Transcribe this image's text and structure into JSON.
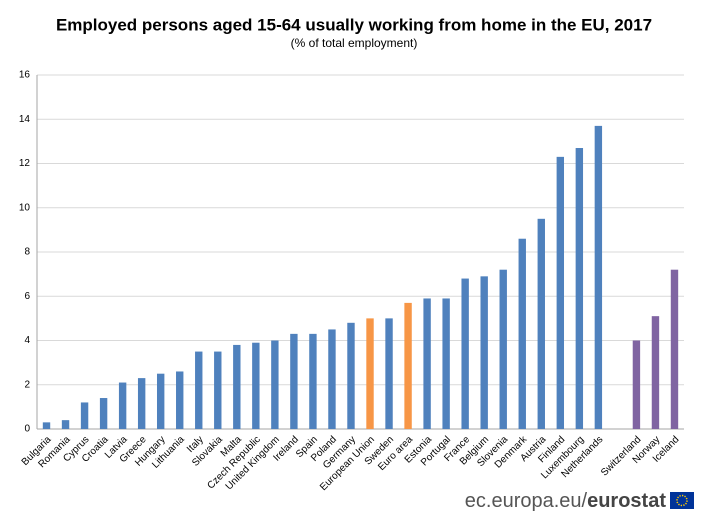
{
  "chart_data": {
    "type": "bar",
    "title": "Employed persons aged 15-64 usually working from home in the EU, 2017",
    "subtitle": "(% of total employment)",
    "categories": [
      "Bulgaria",
      "Romania",
      "Cyprus",
      "Croatia",
      "Latvia",
      "Greece",
      "Hungary",
      "Lithuania",
      "Italy",
      "Slovakia",
      "Malta",
      "Czech Republic",
      "United Kingdom",
      "Ireland",
      "Spain",
      "Poland",
      "Germany",
      "European Union",
      "Sweden",
      "Euro area",
      "Estonia",
      "Portugal",
      "France",
      "Belgium",
      "Slovenia",
      "Denmark",
      "Austria",
      "Finland",
      "Luxembourg",
      "Netherlands",
      null,
      "Switzerland",
      "Norway",
      "Iceland"
    ],
    "values": [
      0.3,
      0.4,
      1.2,
      1.4,
      2.1,
      2.3,
      2.5,
      2.6,
      3.5,
      3.5,
      3.8,
      3.9,
      4.0,
      4.3,
      4.3,
      4.5,
      4.8,
      5.0,
      5.0,
      5.7,
      5.9,
      5.9,
      6.8,
      6.9,
      7.2,
      8.6,
      9.5,
      12.3,
      12.7,
      13.7,
      null,
      4.0,
      5.1,
      7.2
    ],
    "colors": [
      "#4f81bd",
      "#4f81bd",
      "#4f81bd",
      "#4f81bd",
      "#4f81bd",
      "#4f81bd",
      "#4f81bd",
      "#4f81bd",
      "#4f81bd",
      "#4f81bd",
      "#4f81bd",
      "#4f81bd",
      "#4f81bd",
      "#4f81bd",
      "#4f81bd",
      "#4f81bd",
      "#4f81bd",
      "#f79646",
      "#4f81bd",
      "#f79646",
      "#4f81bd",
      "#4f81bd",
      "#4f81bd",
      "#4f81bd",
      "#4f81bd",
      "#4f81bd",
      "#4f81bd",
      "#4f81bd",
      "#4f81bd",
      "#4f81bd",
      null,
      "#8064a2",
      "#8064a2",
      "#8064a2"
    ],
    "ylim": [
      0,
      16
    ],
    "yticks": [
      0,
      2,
      4,
      6,
      8,
      10,
      12,
      14,
      16
    ],
    "grid": true,
    "source": {
      "prefix": "ec.europa.eu/",
      "brand": "eurostat"
    }
  }
}
